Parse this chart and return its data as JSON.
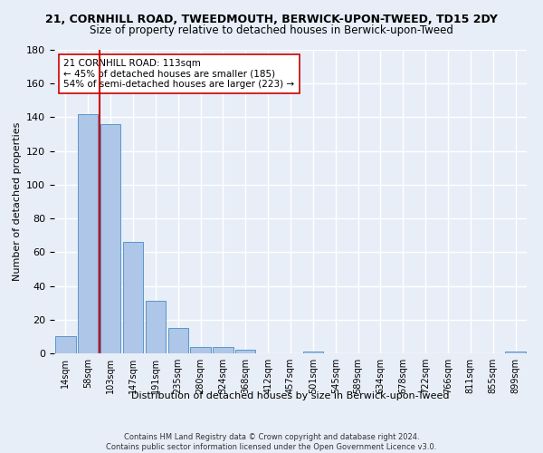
{
  "title": "21, CORNHILL ROAD, TWEEDMOUTH, BERWICK-UPON-TWEED, TD15 2DY",
  "subtitle": "Size of property relative to detached houses in Berwick-upon-Tweed",
  "xlabel": "Distribution of detached houses by size in Berwick-upon-Tweed",
  "ylabel": "Number of detached properties",
  "footer1": "Contains HM Land Registry data © Crown copyright and database right 2024.",
  "footer2": "Contains public sector information licensed under the Open Government Licence v3.0.",
  "bar_labels": [
    "14sqm",
    "58sqm",
    "103sqm",
    "147sqm",
    "191sqm",
    "235sqm",
    "280sqm",
    "324sqm",
    "368sqm",
    "412sqm",
    "457sqm",
    "501sqm",
    "545sqm",
    "589sqm",
    "634sqm",
    "678sqm",
    "722sqm",
    "766sqm",
    "811sqm",
    "855sqm",
    "899sqm"
  ],
  "bar_values": [
    10,
    142,
    136,
    66,
    31,
    15,
    4,
    4,
    2,
    0,
    0,
    1,
    0,
    0,
    0,
    0,
    0,
    0,
    0,
    0,
    1
  ],
  "bar_color": "#aec6e8",
  "bar_edge_color": "#5a96c8",
  "highlight_line_color": "#cc0000",
  "annotation_text": "21 CORNHILL ROAD: 113sqm\n← 45% of detached houses are smaller (185)\n54% of semi-detached houses are larger (223) →",
  "annotation_box_color": "#ffffff",
  "annotation_box_edge_color": "#cc0000",
  "ylim": [
    0,
    180
  ],
  "yticks": [
    0,
    20,
    40,
    60,
    80,
    100,
    120,
    140,
    160,
    180
  ],
  "background_color": "#e8eef8",
  "plot_background_color": "#e8eef8",
  "grid_color": "#ffffff",
  "title_fontsize": 9,
  "subtitle_fontsize": 8.5,
  "xlabel_fontsize": 8,
  "ylabel_fontsize": 8
}
